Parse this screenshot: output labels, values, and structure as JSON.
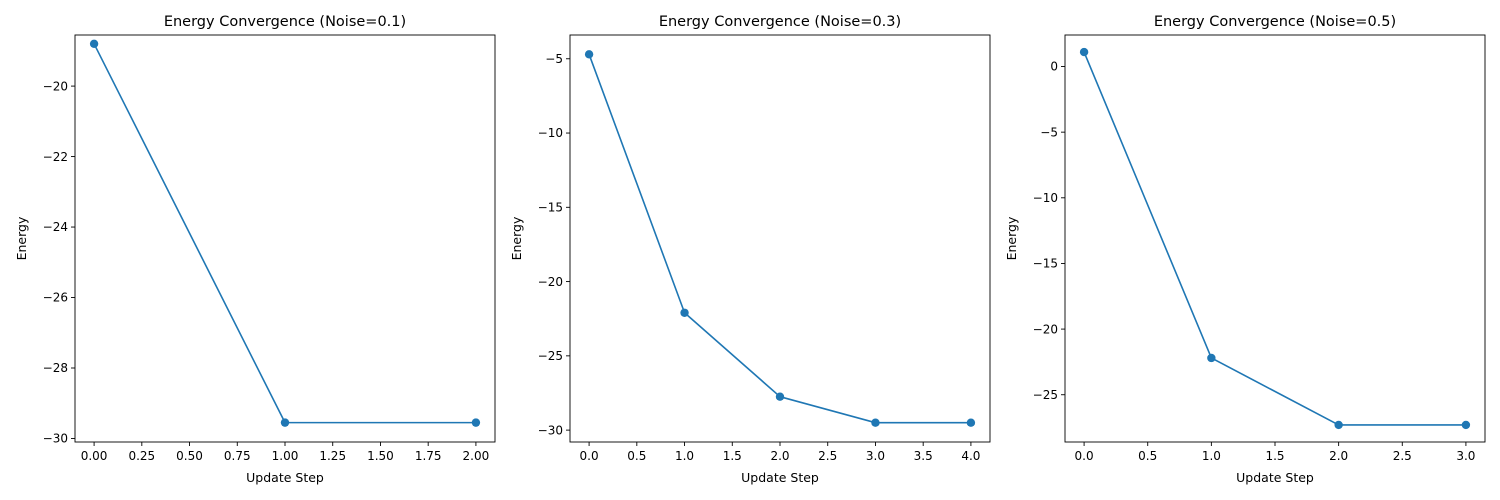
{
  "chart_data": [
    {
      "type": "line",
      "title": "Energy Convergence (Noise=0.1)",
      "xlabel": "Update Step",
      "ylabel": "Energy",
      "xlim": [
        -0.1,
        2.1
      ],
      "ylim": [
        -30.1,
        -18.55
      ],
      "xticks": [
        0.0,
        0.25,
        0.5,
        0.75,
        1.0,
        1.25,
        1.5,
        1.75,
        2.0
      ],
      "xtick_labels": [
        "0.00",
        "0.25",
        "0.50",
        "0.75",
        "1.00",
        "1.25",
        "1.50",
        "1.75",
        "2.00"
      ],
      "yticks": [
        -30,
        -28,
        -26,
        -24,
        -22,
        -20
      ],
      "ytick_labels": [
        "−30",
        "−28",
        "−26",
        "−24",
        "−22",
        "−20"
      ],
      "x": [
        0,
        1,
        2
      ],
      "y": [
        -18.8,
        -29.55,
        -29.55
      ],
      "color": "#1f77b4",
      "marker": "circle",
      "grid": false,
      "legend": false
    },
    {
      "type": "line",
      "title": "Energy Convergence (Noise=0.3)",
      "xlabel": "Update Step",
      "ylabel": "Energy",
      "xlim": [
        -0.2,
        4.2
      ],
      "ylim": [
        -30.8,
        -3.4
      ],
      "xticks": [
        0.0,
        0.5,
        1.0,
        1.5,
        2.0,
        2.5,
        3.0,
        3.5,
        4.0
      ],
      "xtick_labels": [
        "0.0",
        "0.5",
        "1.0",
        "1.5",
        "2.0",
        "2.5",
        "3.0",
        "3.5",
        "4.0"
      ],
      "yticks": [
        -30,
        -25,
        -20,
        -15,
        -10,
        -5
      ],
      "ytick_labels": [
        "−30",
        "−25",
        "−20",
        "−15",
        "−10",
        "−5"
      ],
      "x": [
        0,
        1,
        2,
        3,
        4
      ],
      "y": [
        -4.7,
        -22.1,
        -27.75,
        -29.5,
        -29.5
      ],
      "color": "#1f77b4",
      "marker": "circle",
      "grid": false,
      "legend": false
    },
    {
      "type": "line",
      "title": "Energy Convergence (Noise=0.5)",
      "xlabel": "Update Step",
      "ylabel": "Energy",
      "xlim": [
        -0.15,
        3.15
      ],
      "ylim": [
        -28.6,
        2.4
      ],
      "xticks": [
        0.0,
        0.5,
        1.0,
        1.5,
        2.0,
        2.5,
        3.0
      ],
      "xtick_labels": [
        "0.0",
        "0.5",
        "1.0",
        "1.5",
        "2.0",
        "2.5",
        "3.0"
      ],
      "yticks": [
        -25,
        -20,
        -15,
        -10,
        -5,
        0
      ],
      "ytick_labels": [
        "−25",
        "−20",
        "−15",
        "−10",
        "−5",
        "0"
      ],
      "x": [
        0,
        1,
        2,
        3
      ],
      "y": [
        1.1,
        -22.2,
        -27.3,
        -27.3
      ],
      "color": "#1f77b4",
      "marker": "circle",
      "grid": false,
      "legend": false
    }
  ]
}
